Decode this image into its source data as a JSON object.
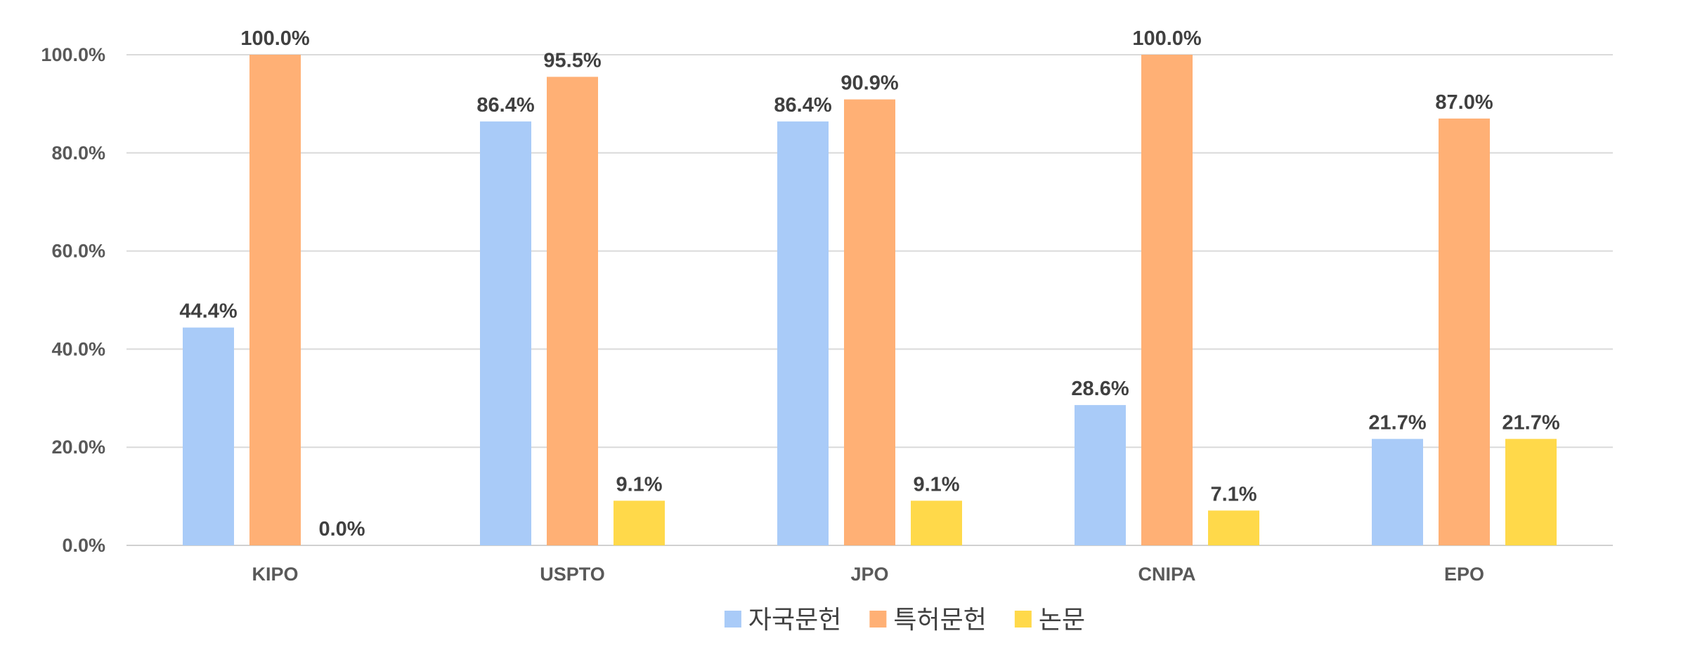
{
  "chart_data": {
    "type": "bar",
    "categories": [
      "KIPO",
      "USPTO",
      "JPO",
      "CNIPA",
      "EPO"
    ],
    "series": [
      {
        "name": "자국문헌",
        "color": "#a9cbf8",
        "values": [
          44.4,
          86.4,
          86.4,
          28.6,
          21.7
        ]
      },
      {
        "name": "특허문헌",
        "color": "#ffb075",
        "values": [
          100.0,
          95.5,
          90.9,
          100.0,
          87.0
        ]
      },
      {
        "name": "논문",
        "color": "#ffd94a",
        "values": [
          0.0,
          9.1,
          9.1,
          7.1,
          21.7
        ]
      }
    ],
    "ylim": [
      0,
      100
    ],
    "yticks": [
      0,
      20,
      40,
      60,
      80,
      100
    ],
    "value_format": "percent_1dp",
    "grid": true,
    "legend_position": "bottom",
    "title": "",
    "xlabel": "",
    "ylabel": ""
  }
}
